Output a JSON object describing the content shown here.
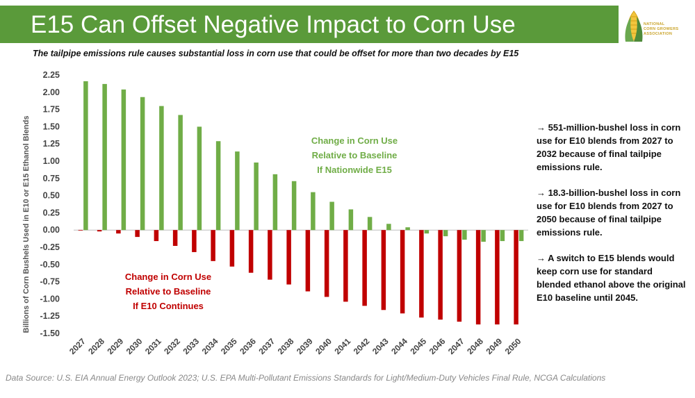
{
  "header": {
    "title": "E15 Can Offset Negative Impact to Corn Use",
    "logo_lines": [
      "NATIONAL",
      "CORN GROWERS",
      "ASSOCIATION"
    ],
    "bg_color": "#5a9a3a"
  },
  "subtitle": "The tailpipe emissions rule causes substantial loss in corn use that could be offset for more than two decades by E15",
  "chart_data": {
    "type": "bar",
    "ylabel": "Billions of Corn Bushels Used in E10 or E15 Ethanol Blends",
    "ylim": [
      -1.5,
      2.25
    ],
    "yticks": [
      "2.25",
      "2.00",
      "1.75",
      "1.50",
      "1.25",
      "1.00",
      "0.75",
      "0.50",
      "0.25",
      "0.00",
      "-0.25",
      "-0.50",
      "-0.75",
      "-1.00",
      "-1.25",
      "-1.50"
    ],
    "categories": [
      "2027",
      "2028",
      "2029",
      "2030",
      "2031",
      "2032",
      "2033",
      "2034",
      "2035",
      "2036",
      "2037",
      "2038",
      "2039",
      "2040",
      "2041",
      "2042",
      "2043",
      "2044",
      "2045",
      "2046",
      "2047",
      "2048",
      "2049",
      "2050"
    ],
    "series": [
      {
        "name": "Change in Corn Use Relative to Baseline If Nationwide E15",
        "color": "#70ad47",
        "values": [
          2.16,
          2.12,
          2.04,
          1.93,
          1.8,
          1.67,
          1.5,
          1.29,
          1.14,
          0.98,
          0.81,
          0.71,
          0.55,
          0.41,
          0.3,
          0.19,
          0.09,
          0.04,
          -0.05,
          -0.09,
          -0.14,
          -0.17,
          -0.16,
          -0.16
        ]
      },
      {
        "name": "Change in Corn Use Relative to Baseline If E10 Continues",
        "color": "#c00000",
        "values": [
          -0.005,
          -0.02,
          -0.05,
          -0.1,
          -0.16,
          -0.23,
          -0.32,
          -0.45,
          -0.53,
          -0.62,
          -0.72,
          -0.79,
          -0.89,
          -0.97,
          -1.04,
          -1.1,
          -1.16,
          -1.21,
          -1.27,
          -1.3,
          -1.33,
          -1.37,
          -1.37,
          -1.37
        ]
      }
    ],
    "annotations": [
      {
        "lines": [
          "Change in Corn Use",
          "Relative to Baseline",
          "If Nationwide E15"
        ],
        "color": "#70ad47"
      },
      {
        "lines": [
          "Change in Corn Use",
          "Relative to Baseline",
          "If E10 Continues"
        ],
        "color": "#c00000"
      }
    ],
    "legend": "none",
    "grid": false
  },
  "notes": [
    "→ 551-million-bushel loss in corn use for E10 blends from 2027 to 2032 because of final tailpipe emissions rule.",
    "→ 18.3-billion-bushel loss in corn use for E10 blends from 2027 to 2050 because of final tailpipe emissions rule.",
    "→ A switch to E15 blends would keep corn use for standard blended ethanol above the original E10 baseline until 2045."
  ],
  "footer": "Data Source: U.S. EIA Annual Energy Outlook 2023; U.S. EPA Multi-Pollutant Emissions Standards for Light/Medium-Duty Vehicles Final Rule, NCGA Calculations"
}
